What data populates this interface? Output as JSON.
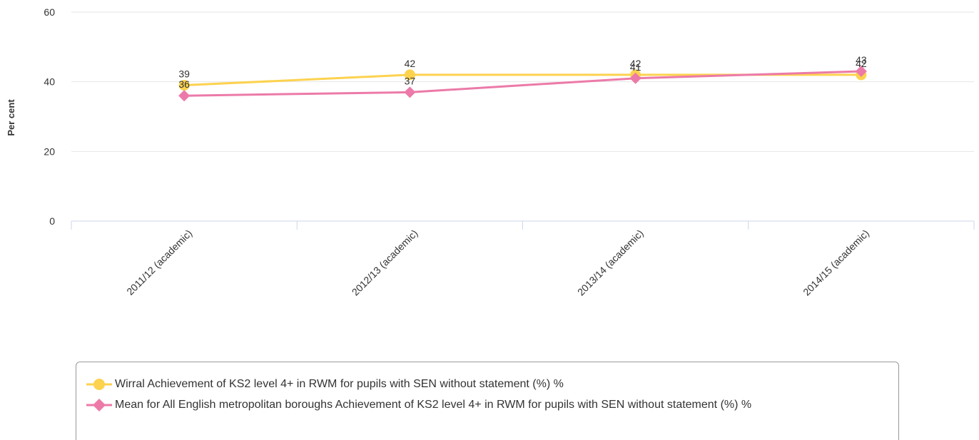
{
  "chart_data": {
    "type": "line",
    "title": "",
    "xlabel": "",
    "ylabel": "Per cent",
    "ylim": [
      0,
      60
    ],
    "yticks": [
      "0",
      "20",
      "40",
      "60"
    ],
    "categories": [
      "2011/12 (academic)",
      "2012/13 (academic)",
      "2013/14 (academic)",
      "2014/15 (academic)"
    ],
    "grid": "horizontal",
    "legend_position": "bottom",
    "series": [
      {
        "name": "Wirral Achievement of KS2 level 4+ in RWM for pupils with SEN without statement (%) %",
        "values": [
          39,
          42,
          42,
          42
        ],
        "color": "#fcd24f",
        "marker": "circle"
      },
      {
        "name": "Mean for All English metropolitan boroughs Achievement of KS2 level 4+ in RWM for pupils with SEN without statement (%) %",
        "values": [
          36,
          37,
          41,
          43
        ],
        "color": "#ec7aa8",
        "marker": "diamond"
      }
    ]
  }
}
